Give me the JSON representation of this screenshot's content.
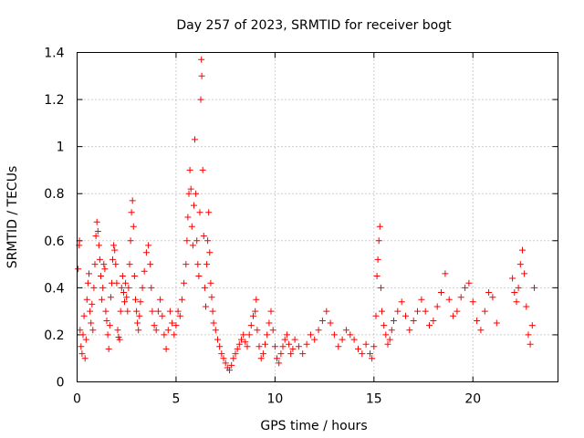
{
  "chart_data": {
    "type": "scatter",
    "title": "Day 257 of 2023, SRMTID for receiver bogt",
    "xlabel": "GPS time / hours",
    "ylabel": "SRMTID / TECUs",
    "xlim": [
      0,
      24.3
    ],
    "ylim": [
      0,
      1.4
    ],
    "xticks": [
      0,
      5,
      10,
      15,
      20
    ],
    "yticks": [
      0,
      0.2,
      0.4,
      0.6,
      0.8,
      1,
      1.2,
      1.4
    ],
    "xtick_labels": [
      "0",
      "5",
      "10",
      "15",
      "20"
    ],
    "ytick_labels": [
      "0",
      "0.2",
      "0.4",
      "0.6",
      "0.8",
      "1",
      "1.2",
      "1.4"
    ],
    "grid": true,
    "marker": "+",
    "color": "#ff0000",
    "series": [
      {
        "name": "SRMTID",
        "points": [
          [
            0.05,
            0.48
          ],
          [
            0.1,
            0.58
          ],
          [
            0.12,
            0.6
          ],
          [
            0.15,
            0.22
          ],
          [
            0.2,
            0.15
          ],
          [
            0.25,
            0.12
          ],
          [
            0.3,
            0.2
          ],
          [
            0.35,
            0.28
          ],
          [
            0.4,
            0.1
          ],
          [
            0.45,
            0.18
          ],
          [
            0.5,
            0.35
          ],
          [
            0.55,
            0.42
          ],
          [
            0.6,
            0.46
          ],
          [
            0.65,
            0.3
          ],
          [
            0.7,
            0.25
          ],
          [
            0.75,
            0.33
          ],
          [
            0.8,
            0.22
          ],
          [
            0.85,
            0.4
          ],
          [
            0.9,
            0.5
          ],
          [
            0.95,
            0.62
          ],
          [
            1.0,
            0.68
          ],
          [
            1.05,
            0.64
          ],
          [
            1.1,
            0.58
          ],
          [
            1.15,
            0.52
          ],
          [
            1.2,
            0.45
          ],
          [
            1.25,
            0.35
          ],
          [
            1.3,
            0.4
          ],
          [
            1.35,
            0.5
          ],
          [
            1.4,
            0.48
          ],
          [
            1.45,
            0.3
          ],
          [
            1.5,
            0.26
          ],
          [
            1.55,
            0.2
          ],
          [
            1.6,
            0.14
          ],
          [
            1.65,
            0.24
          ],
          [
            1.7,
            0.36
          ],
          [
            1.75,
            0.42
          ],
          [
            1.8,
            0.52
          ],
          [
            1.85,
            0.58
          ],
          [
            1.9,
            0.56
          ],
          [
            1.95,
            0.5
          ],
          [
            2.0,
            0.42
          ],
          [
            2.05,
            0.22
          ],
          [
            2.1,
            0.19
          ],
          [
            2.15,
            0.18
          ],
          [
            2.2,
            0.3
          ],
          [
            2.25,
            0.4
          ],
          [
            2.3,
            0.45
          ],
          [
            2.35,
            0.38
          ],
          [
            2.4,
            0.34
          ],
          [
            2.45,
            0.42
          ],
          [
            2.5,
            0.36
          ],
          [
            2.55,
            0.3
          ],
          [
            2.6,
            0.4
          ],
          [
            2.65,
            0.5
          ],
          [
            2.7,
            0.6
          ],
          [
            2.75,
            0.72
          ],
          [
            2.8,
            0.77
          ],
          [
            2.85,
            0.66
          ],
          [
            2.9,
            0.45
          ],
          [
            2.95,
            0.35
          ],
          [
            3.0,
            0.3
          ],
          [
            3.05,
            0.25
          ],
          [
            3.1,
            0.22
          ],
          [
            3.15,
            0.28
          ],
          [
            3.2,
            0.34
          ],
          [
            3.3,
            0.4
          ],
          [
            3.4,
            0.47
          ],
          [
            3.5,
            0.55
          ],
          [
            3.6,
            0.58
          ],
          [
            3.7,
            0.5
          ],
          [
            3.75,
            0.4
          ],
          [
            3.8,
            0.3
          ],
          [
            3.9,
            0.24
          ],
          [
            4.0,
            0.22
          ],
          [
            4.1,
            0.3
          ],
          [
            4.2,
            0.35
          ],
          [
            4.3,
            0.28
          ],
          [
            4.4,
            0.2
          ],
          [
            4.5,
            0.14
          ],
          [
            4.6,
            0.22
          ],
          [
            4.7,
            0.3
          ],
          [
            4.8,
            0.25
          ],
          [
            4.9,
            0.2
          ],
          [
            5.0,
            0.24
          ],
          [
            5.1,
            0.3
          ],
          [
            5.2,
            0.28
          ],
          [
            5.3,
            0.35
          ],
          [
            5.4,
            0.42
          ],
          [
            5.5,
            0.5
          ],
          [
            5.55,
            0.6
          ],
          [
            5.6,
            0.7
          ],
          [
            5.65,
            0.8
          ],
          [
            5.7,
            0.9
          ],
          [
            5.75,
            0.82
          ],
          [
            5.8,
            0.66
          ],
          [
            5.85,
            0.58
          ],
          [
            5.9,
            0.75
          ],
          [
            5.95,
            1.03
          ],
          [
            6.0,
            0.8
          ],
          [
            6.05,
            0.6
          ],
          [
            6.1,
            0.5
          ],
          [
            6.15,
            0.45
          ],
          [
            6.2,
            0.72
          ],
          [
            6.25,
            1.2
          ],
          [
            6.28,
            1.37
          ],
          [
            6.3,
            1.3
          ],
          [
            6.35,
            0.9
          ],
          [
            6.4,
            0.62
          ],
          [
            6.45,
            0.4
          ],
          [
            6.5,
            0.32
          ],
          [
            6.55,
            0.5
          ],
          [
            6.6,
            0.6
          ],
          [
            6.65,
            0.72
          ],
          [
            6.7,
            0.55
          ],
          [
            6.75,
            0.42
          ],
          [
            6.8,
            0.36
          ],
          [
            6.85,
            0.3
          ],
          [
            6.9,
            0.25
          ],
          [
            7.0,
            0.22
          ],
          [
            7.1,
            0.18
          ],
          [
            7.2,
            0.15
          ],
          [
            7.3,
            0.12
          ],
          [
            7.4,
            0.1
          ],
          [
            7.5,
            0.08
          ],
          [
            7.6,
            0.06
          ],
          [
            7.7,
            0.05
          ],
          [
            7.8,
            0.07
          ],
          [
            7.9,
            0.1
          ],
          [
            8.0,
            0.12
          ],
          [
            8.1,
            0.14
          ],
          [
            8.2,
            0.16
          ],
          [
            8.3,
            0.18
          ],
          [
            8.4,
            0.2
          ],
          [
            8.5,
            0.17
          ],
          [
            8.6,
            0.15
          ],
          [
            8.7,
            0.2
          ],
          [
            8.8,
            0.24
          ],
          [
            8.9,
            0.28
          ],
          [
            9.0,
            0.3
          ],
          [
            9.05,
            0.35
          ],
          [
            9.1,
            0.22
          ],
          [
            9.2,
            0.15
          ],
          [
            9.3,
            0.1
          ],
          [
            9.4,
            0.12
          ],
          [
            9.5,
            0.16
          ],
          [
            9.6,
            0.2
          ],
          [
            9.7,
            0.25
          ],
          [
            9.8,
            0.3
          ],
          [
            9.9,
            0.22
          ],
          [
            10.0,
            0.15
          ],
          [
            10.1,
            0.1
          ],
          [
            10.2,
            0.08
          ],
          [
            10.3,
            0.12
          ],
          [
            10.4,
            0.15
          ],
          [
            10.5,
            0.18
          ],
          [
            10.6,
            0.2
          ],
          [
            10.7,
            0.16
          ],
          [
            10.8,
            0.12
          ],
          [
            10.9,
            0.14
          ],
          [
            11.0,
            0.18
          ],
          [
            11.2,
            0.15
          ],
          [
            11.4,
            0.12
          ],
          [
            11.6,
            0.16
          ],
          [
            11.8,
            0.2
          ],
          [
            12.0,
            0.18
          ],
          [
            12.2,
            0.22
          ],
          [
            12.4,
            0.26
          ],
          [
            12.6,
            0.3
          ],
          [
            12.8,
            0.25
          ],
          [
            13.0,
            0.2
          ],
          [
            13.2,
            0.15
          ],
          [
            13.4,
            0.18
          ],
          [
            13.6,
            0.22
          ],
          [
            13.8,
            0.2
          ],
          [
            14.0,
            0.18
          ],
          [
            14.2,
            0.14
          ],
          [
            14.4,
            0.12
          ],
          [
            14.6,
            0.16
          ],
          [
            14.8,
            0.12
          ],
          [
            14.9,
            0.1
          ],
          [
            15.0,
            0.15
          ],
          [
            15.1,
            0.28
          ],
          [
            15.15,
            0.45
          ],
          [
            15.2,
            0.52
          ],
          [
            15.25,
            0.6
          ],
          [
            15.3,
            0.66
          ],
          [
            15.35,
            0.4
          ],
          [
            15.4,
            0.3
          ],
          [
            15.5,
            0.24
          ],
          [
            15.6,
            0.2
          ],
          [
            15.7,
            0.16
          ],
          [
            15.8,
            0.18
          ],
          [
            15.9,
            0.22
          ],
          [
            16.0,
            0.26
          ],
          [
            16.2,
            0.3
          ],
          [
            16.4,
            0.34
          ],
          [
            16.6,
            0.28
          ],
          [
            16.8,
            0.22
          ],
          [
            17.0,
            0.26
          ],
          [
            17.2,
            0.3
          ],
          [
            17.4,
            0.35
          ],
          [
            17.6,
            0.3
          ],
          [
            17.8,
            0.24
          ],
          [
            18.0,
            0.26
          ],
          [
            18.2,
            0.32
          ],
          [
            18.4,
            0.38
          ],
          [
            18.6,
            0.46
          ],
          [
            18.8,
            0.35
          ],
          [
            19.0,
            0.28
          ],
          [
            19.2,
            0.3
          ],
          [
            19.4,
            0.36
          ],
          [
            19.6,
            0.4
          ],
          [
            19.8,
            0.42
          ],
          [
            20.0,
            0.34
          ],
          [
            20.2,
            0.26
          ],
          [
            20.4,
            0.22
          ],
          [
            20.6,
            0.3
          ],
          [
            20.8,
            0.38
          ],
          [
            21.0,
            0.36
          ],
          [
            21.2,
            0.25
          ],
          [
            22.0,
            0.44
          ],
          [
            22.1,
            0.38
          ],
          [
            22.2,
            0.34
          ],
          [
            22.3,
            0.4
          ],
          [
            22.4,
            0.5
          ],
          [
            22.5,
            0.56
          ],
          [
            22.6,
            0.46
          ],
          [
            22.7,
            0.32
          ],
          [
            22.8,
            0.2
          ],
          [
            22.9,
            0.16
          ],
          [
            23.0,
            0.24
          ],
          [
            23.1,
            0.4
          ]
        ]
      }
    ]
  }
}
